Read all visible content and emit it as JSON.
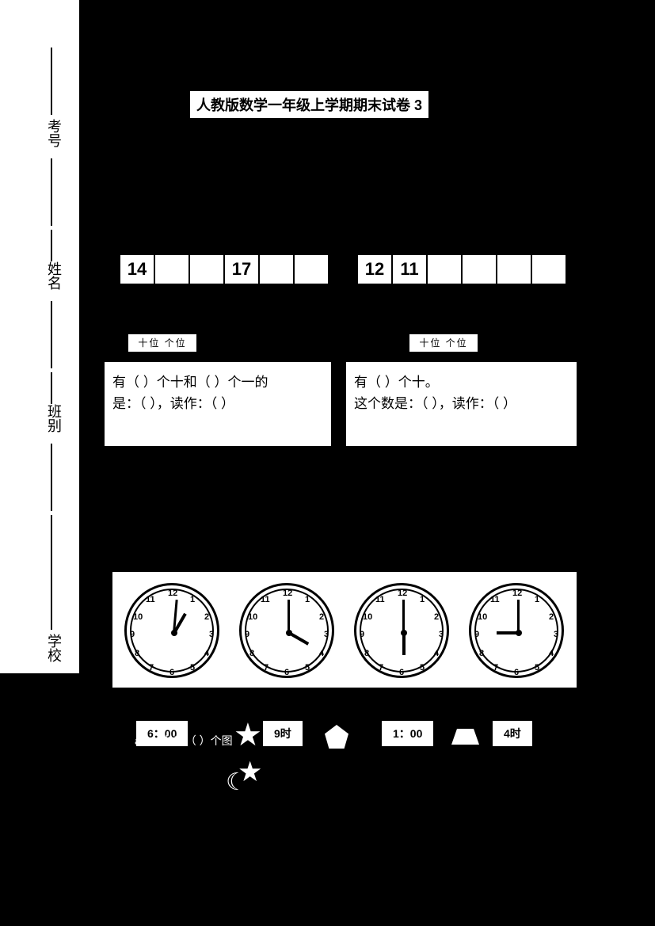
{
  "sidebar": {
    "labels": [
      "考号",
      "姓名",
      "班别",
      "学校"
    ]
  },
  "title": "人教版数学一年级上学期期末试卷 3",
  "table1": {
    "cells": [
      "14",
      "",
      "",
      "17",
      "",
      ""
    ]
  },
  "table2": {
    "cells": [
      "12",
      "11",
      "",
      "",
      "",
      ""
    ]
  },
  "abacus_label": "十位 个位",
  "box1": {
    "line1": "有（ ）个十和（ ）个一的",
    "line2": "是：（ ），读作：（ ）"
  },
  "box2": {
    "line1": "有（ ）个十。",
    "line2": "这个数是：（ ），读作：（ ）"
  },
  "clocks": {
    "numbers": [
      "12",
      "1",
      "2",
      "3",
      "4",
      "5",
      "6",
      "7",
      "8",
      "9",
      "10",
      "11"
    ],
    "times": [
      {
        "hour_angle": 30,
        "min_angle": 5
      },
      {
        "hour_angle": 120,
        "min_angle": 0
      },
      {
        "hour_angle": 180,
        "min_angle": 0
      },
      {
        "hour_angle": -90,
        "min_angle": 0
      }
    ]
  },
  "time_boxes": [
    "6：00",
    "9时",
    "1：00",
    "4时"
  ],
  "shapes_text": "a）一共有（  ）个图"
}
